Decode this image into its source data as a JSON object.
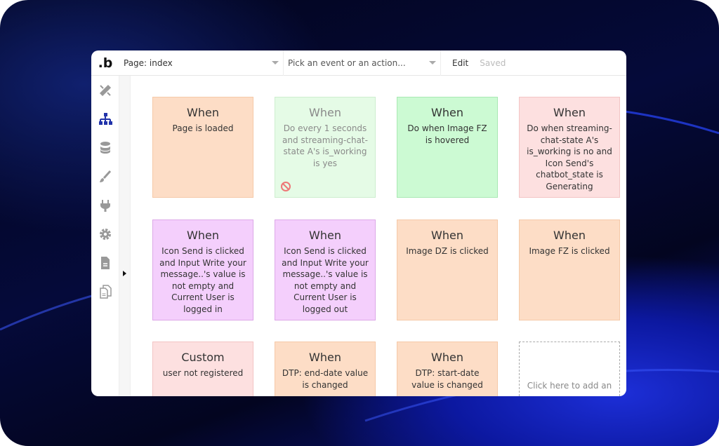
{
  "header": {
    "page_select": "Page: index",
    "event_select": "Pick an event or an action...",
    "edit": "Edit",
    "saved": "Saved"
  },
  "sidebar": {
    "icons": [
      "design-icon",
      "workflow-icon",
      "data-icon",
      "styles-icon",
      "plugins-icon",
      "settings-icon",
      "logs-icon",
      "pages-icon"
    ],
    "active": "workflow-icon",
    "accent": "#2233aa"
  },
  "cards": [
    {
      "title": "When",
      "desc": "Page is loaded",
      "color": "orange"
    },
    {
      "title": "When",
      "desc": "Do every 1 seconds and streaming-chat-state A's is_working is yes",
      "color": "lgreen",
      "disabled": true
    },
    {
      "title": "When",
      "desc": "Do when Image FZ is hovered",
      "color": "green"
    },
    {
      "title": "When",
      "desc": "Do when streaming-chat-state A's is_working is no and Icon Send's chatbot_state is Generating",
      "color": "pink"
    },
    {
      "title": "When",
      "desc": "Icon Send is clicked and Input Write your message..'s value is not empty and Current User is logged in",
      "color": "purple"
    },
    {
      "title": "When",
      "desc": "Icon Send is clicked and Input Write your message..'s value is not empty and Current User is logged out",
      "color": "purple"
    },
    {
      "title": "When",
      "desc": "Image DZ is clicked",
      "color": "orange"
    },
    {
      "title": "When",
      "desc": "Image FZ is clicked",
      "color": "orange"
    },
    {
      "title": "Custom",
      "desc": "user not registered",
      "color": "pink"
    },
    {
      "title": "When",
      "desc": "DTP: end-date value is changed",
      "color": "orange"
    },
    {
      "title": "When",
      "desc": "DTP: start-date value is changed",
      "color": "orange"
    }
  ],
  "add_card": {
    "text": "Click here to add an"
  }
}
